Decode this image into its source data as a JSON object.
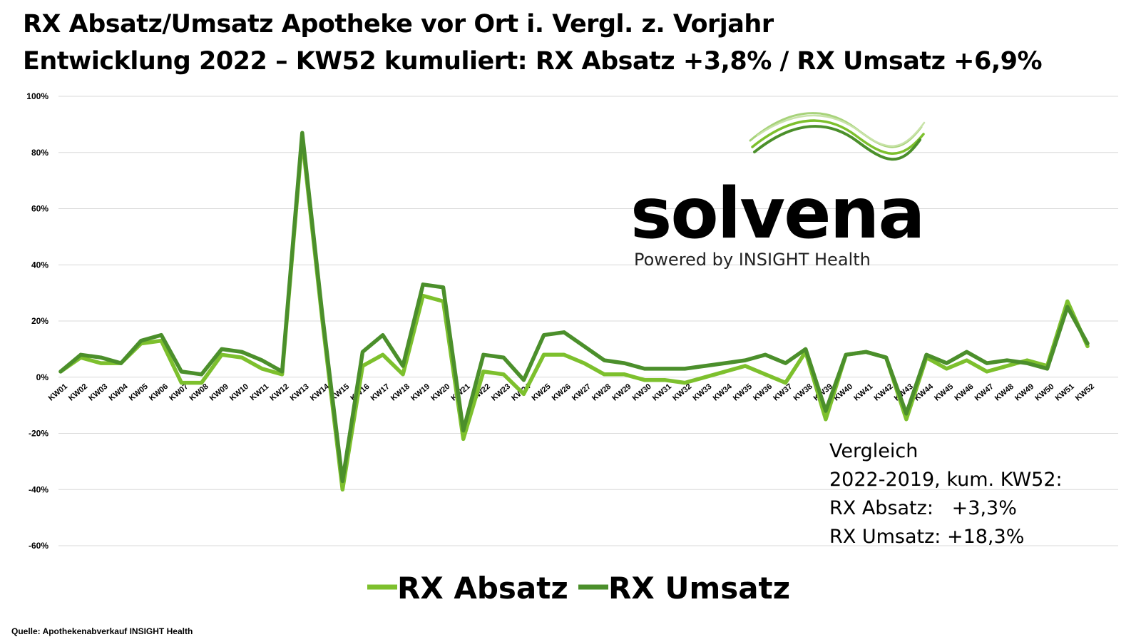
{
  "title_line1": "RX Absatz/Umsatz Apotheke vor Ort i. Vergl. z. Vorjahr",
  "title_line2": "Entwicklung 2022 – KW52 kumuliert: RX Absatz +3,8% / RX Umsatz +6,9%",
  "logo": {
    "name": "solvena",
    "tagline": "Powered by INSIGHT Health"
  },
  "note": {
    "line1": "Vergleich",
    "line2": "2022-2019, kum. KW52:",
    "line3": "RX Absatz:   +3,3%",
    "line4": "RX Umsatz: +18,3%"
  },
  "source": "Quelle: Apothekenabverkauf INSIGHT Health",
  "colors": {
    "absatz": "#7dc02d",
    "umsatz": "#4b8f2b",
    "grid": "#d9d9d9"
  },
  "chart_data": {
    "type": "line",
    "title": "RX Absatz/Umsatz Apotheke vor Ort i. Vergl. z. Vorjahr",
    "subtitle": "Entwicklung 2022 – KW52 kumuliert: RX Absatz +3,8% / RX Umsatz +6,9%",
    "xlabel": "",
    "ylabel": "",
    "ylim": [
      -60,
      100
    ],
    "yticks": [
      -60,
      -40,
      -20,
      0,
      20,
      40,
      60,
      80,
      100
    ],
    "ytick_labels": [
      "-60%",
      "-40%",
      "-20%",
      "0%",
      "20%",
      "40%",
      "60%",
      "80%",
      "100%"
    ],
    "grid": true,
    "legend_position": "bottom-center",
    "categories": [
      "KW01",
      "KW02",
      "KW03",
      "KW04",
      "KW05",
      "KW06",
      "KW07",
      "KW08",
      "KW09",
      "KW10",
      "KW11",
      "KW12",
      "KW13",
      "KW14",
      "KW15",
      "KW16",
      "KW17",
      "KW18",
      "KW19",
      "KW20",
      "KW21",
      "KW22",
      "KW23",
      "KW24",
      "KW25",
      "KW26",
      "KW27",
      "KW28",
      "KW29",
      "KW30",
      "KW31",
      "KW32",
      "KW33",
      "KW34",
      "KW35",
      "KW36",
      "KW37",
      "KW38",
      "KW39",
      "KW40",
      "KW41",
      "KW42",
      "KW43",
      "KW44",
      "KW45",
      "KW46",
      "KW47",
      "KW48",
      "KW49",
      "KW50",
      "KW51",
      "KW52"
    ],
    "series": [
      {
        "name": "RX Absatz",
        "values": [
          2,
          7,
          5,
          5,
          12,
          13,
          -2,
          -2,
          8,
          7,
          3,
          1,
          85,
          20,
          -40,
          4,
          8,
          1,
          29,
          27,
          -22,
          2,
          1,
          -6,
          8,
          8,
          5,
          1,
          1,
          -1,
          -1,
          -2,
          0,
          2,
          4,
          1,
          -2,
          9,
          -15,
          8,
          9,
          7,
          -15,
          7,
          3,
          6,
          2,
          4,
          6,
          4,
          27,
          11
        ]
      },
      {
        "name": "RX Umsatz",
        "values": [
          2,
          8,
          7,
          5,
          13,
          15,
          2,
          1,
          10,
          9,
          6,
          2,
          87,
          22,
          -37,
          9,
          15,
          4,
          33,
          32,
          -19,
          8,
          7,
          -1,
          15,
          16,
          11,
          6,
          5,
          3,
          3,
          3,
          4,
          5,
          6,
          8,
          5,
          10,
          -12,
          8,
          9,
          7,
          -13,
          8,
          5,
          9,
          5,
          6,
          5,
          3,
          25,
          12
        ]
      }
    ]
  }
}
